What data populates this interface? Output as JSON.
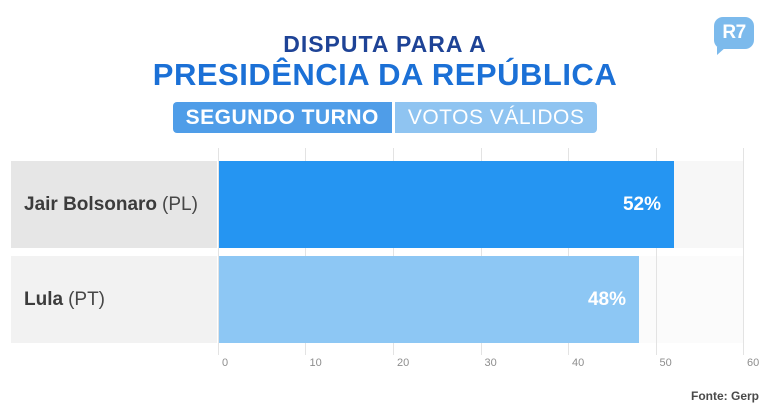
{
  "brand": {
    "logo_text": "R7",
    "logo_color": "#7CBAEC"
  },
  "header": {
    "title_line1": "DISPUTA PARA A",
    "title_line2": "PRESIDÊNCIA DA REPÚBLICA",
    "title_line1_color": "#1E4396",
    "title_line2_color": "#1B70D6",
    "badges": [
      {
        "label": "SEGUNDO TURNO",
        "bg": "#4F9DE8"
      },
      {
        "label": "VOTOS VÁLIDOS",
        "bg": "#8FC4F1"
      }
    ]
  },
  "chart_data": {
    "type": "bar",
    "orientation": "horizontal",
    "title": "Disputa para a Presidência da República — Segundo turno, votos válidos",
    "categories": [
      "Jair Bolsonaro (PL)",
      "Lula (PT)"
    ],
    "values": [
      52,
      48
    ],
    "rows": [
      {
        "name": "Jair Bolsonaro",
        "party": "(PL)",
        "value": 52,
        "value_label": "52%",
        "bar_color": "#2595F2"
      },
      {
        "name": "Lula",
        "party": "(PT)",
        "value": 48,
        "value_label": "48%",
        "bar_color": "#8DC7F4"
      }
    ],
    "xlim": [
      0,
      60
    ],
    "xticks": [
      0,
      10,
      20,
      30,
      40,
      50,
      60
    ],
    "grid": true,
    "legend": false,
    "xlabel": "",
    "ylabel": ""
  },
  "footer": {
    "source": "Fonte: Gerp"
  }
}
